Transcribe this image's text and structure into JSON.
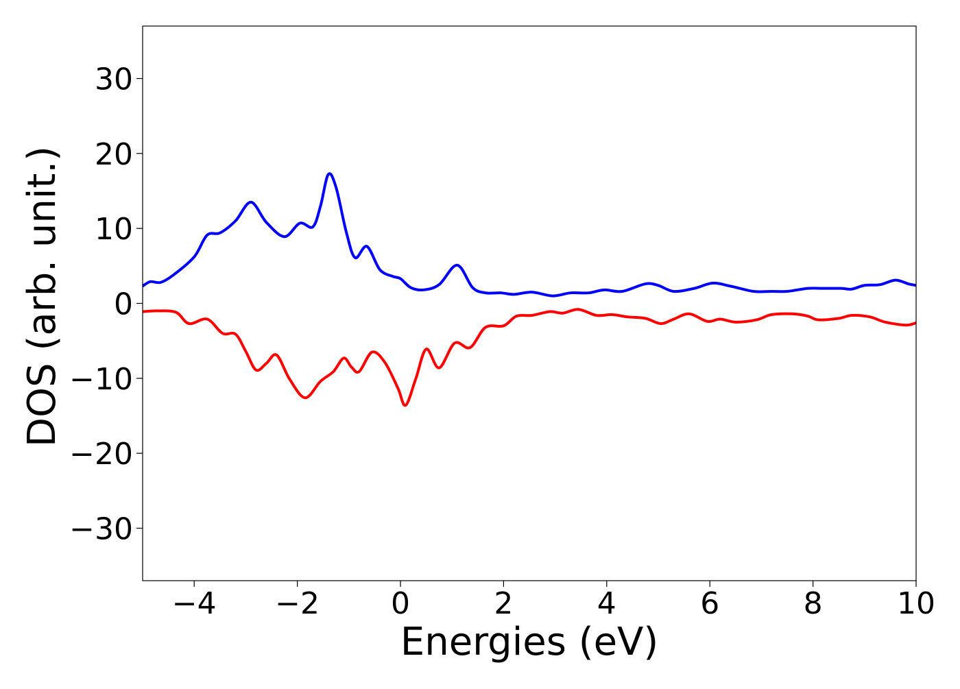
{
  "chart_data": {
    "type": "line",
    "xlabel": "Energies (eV)",
    "ylabel": "DOS (arb. unit.)",
    "xlim": [
      -5,
      10
    ],
    "ylim": [
      -37,
      37
    ],
    "grid": false,
    "legend": "none",
    "xticks": [
      -4,
      -2,
      0,
      2,
      4,
      6,
      8,
      10
    ],
    "xtick_labels": [
      "−4",
      "−2",
      "0",
      "2",
      "4",
      "6",
      "8",
      "10"
    ],
    "yticks": [
      30,
      20,
      10,
      0,
      -10,
      -20,
      -30
    ],
    "ytick_labels": [
      "30",
      "20",
      "10",
      "0",
      "−10",
      "−20",
      "−30"
    ],
    "series": [
      {
        "color": "#0000ff",
        "points": [
          [
            -5.0,
            2.3
          ],
          [
            -4.85,
            2.9
          ],
          [
            -4.65,
            2.8
          ],
          [
            -4.4,
            3.8
          ],
          [
            -4.0,
            6.2
          ],
          [
            -3.75,
            9.1
          ],
          [
            -3.5,
            9.4
          ],
          [
            -3.2,
            11.0
          ],
          [
            -2.9,
            13.5
          ],
          [
            -2.6,
            10.8
          ],
          [
            -2.25,
            8.9
          ],
          [
            -1.95,
            10.7
          ],
          [
            -1.7,
            10.2
          ],
          [
            -1.55,
            13.0
          ],
          [
            -1.4,
            17.2
          ],
          [
            -1.25,
            15.5
          ],
          [
            -1.05,
            9.5
          ],
          [
            -0.88,
            6.1
          ],
          [
            -0.65,
            7.6
          ],
          [
            -0.4,
            4.5
          ],
          [
            -0.15,
            3.6
          ],
          [
            0.0,
            3.3
          ],
          [
            0.2,
            2.1
          ],
          [
            0.45,
            1.8
          ],
          [
            0.75,
            2.5
          ],
          [
            1.1,
            5.1
          ],
          [
            1.4,
            2.1
          ],
          [
            1.65,
            1.4
          ],
          [
            1.95,
            1.4
          ],
          [
            2.2,
            1.2
          ],
          [
            2.55,
            1.5
          ],
          [
            2.95,
            1.0
          ],
          [
            3.3,
            1.4
          ],
          [
            3.65,
            1.4
          ],
          [
            3.95,
            1.8
          ],
          [
            4.3,
            1.6
          ],
          [
            4.75,
            2.6
          ],
          [
            5.0,
            2.4
          ],
          [
            5.3,
            1.6
          ],
          [
            5.7,
            2.0
          ],
          [
            6.05,
            2.7
          ],
          [
            6.4,
            2.3
          ],
          [
            6.85,
            1.6
          ],
          [
            7.2,
            1.6
          ],
          [
            7.5,
            1.6
          ],
          [
            7.9,
            2.0
          ],
          [
            8.2,
            2.0
          ],
          [
            8.55,
            2.0
          ],
          [
            8.75,
            1.9
          ],
          [
            9.0,
            2.4
          ],
          [
            9.3,
            2.5
          ],
          [
            9.6,
            3.1
          ],
          [
            9.85,
            2.6
          ],
          [
            10.0,
            2.4
          ]
        ]
      },
      {
        "color": "#ff0000",
        "points": [
          [
            -5.0,
            -1.1
          ],
          [
            -4.7,
            -1.0
          ],
          [
            -4.35,
            -1.2
          ],
          [
            -4.1,
            -2.7
          ],
          [
            -3.75,
            -2.1
          ],
          [
            -3.45,
            -4.0
          ],
          [
            -3.2,
            -4.1
          ],
          [
            -3.0,
            -6.4
          ],
          [
            -2.8,
            -8.9
          ],
          [
            -2.6,
            -8.0
          ],
          [
            -2.4,
            -6.9
          ],
          [
            -2.15,
            -10.1
          ],
          [
            -1.85,
            -12.6
          ],
          [
            -1.55,
            -10.4
          ],
          [
            -1.3,
            -9.1
          ],
          [
            -1.1,
            -7.3
          ],
          [
            -0.95,
            -8.5
          ],
          [
            -0.8,
            -9.1
          ],
          [
            -0.55,
            -6.5
          ],
          [
            -0.3,
            -7.9
          ],
          [
            -0.05,
            -11.3
          ],
          [
            0.1,
            -13.6
          ],
          [
            0.3,
            -10.0
          ],
          [
            0.5,
            -6.1
          ],
          [
            0.75,
            -8.6
          ],
          [
            1.05,
            -5.3
          ],
          [
            1.35,
            -5.9
          ],
          [
            1.65,
            -3.2
          ],
          [
            2.0,
            -3.0
          ],
          [
            2.25,
            -1.7
          ],
          [
            2.55,
            -1.6
          ],
          [
            2.9,
            -1.1
          ],
          [
            3.15,
            -1.3
          ],
          [
            3.45,
            -0.8
          ],
          [
            3.8,
            -1.6
          ],
          [
            4.1,
            -1.5
          ],
          [
            4.4,
            -1.8
          ],
          [
            4.75,
            -2.0
          ],
          [
            5.05,
            -2.7
          ],
          [
            5.3,
            -2.1
          ],
          [
            5.6,
            -1.4
          ],
          [
            5.95,
            -2.4
          ],
          [
            6.2,
            -2.1
          ],
          [
            6.5,
            -2.5
          ],
          [
            6.9,
            -2.2
          ],
          [
            7.2,
            -1.5
          ],
          [
            7.6,
            -1.4
          ],
          [
            7.9,
            -1.7
          ],
          [
            8.1,
            -2.2
          ],
          [
            8.5,
            -2.0
          ],
          [
            8.75,
            -1.6
          ],
          [
            9.1,
            -1.8
          ],
          [
            9.4,
            -2.5
          ],
          [
            9.8,
            -2.9
          ],
          [
            10.0,
            -2.6
          ]
        ]
      }
    ]
  }
}
